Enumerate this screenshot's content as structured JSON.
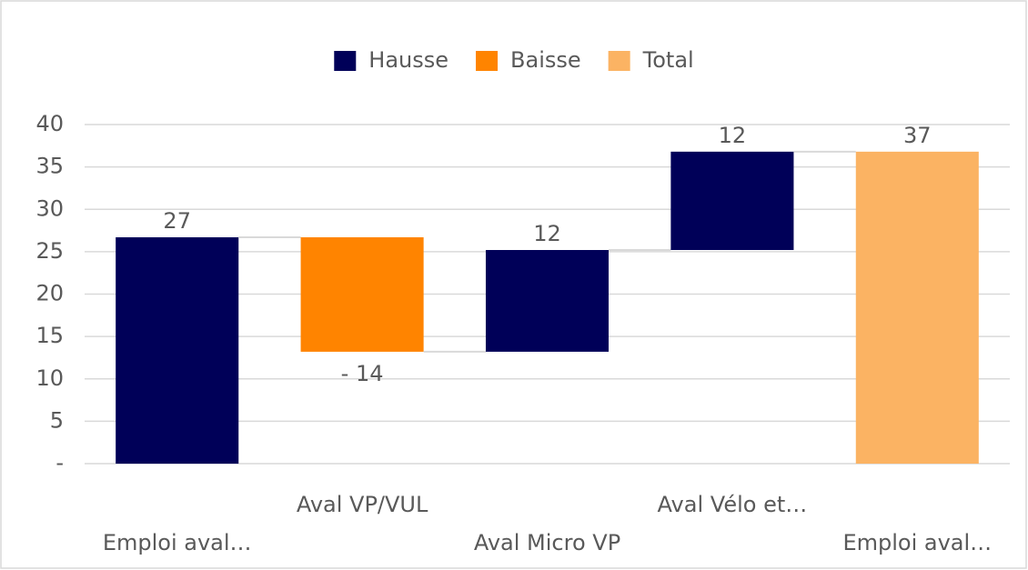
{
  "chart_data": {
    "type": "waterfall",
    "categories": [
      "Emploi aval…",
      "Aval VP/VUL",
      "Aval Micro VP",
      "Aval Vélo et…",
      "Emploi aval…"
    ],
    "series": [
      {
        "name": "Hausse",
        "color": "#000058",
        "values": [
          26.7,
          null,
          12,
          11.6,
          null
        ],
        "value_labels": [
          "27",
          null,
          "12",
          "12",
          null
        ]
      },
      {
        "name": "Baisse",
        "color": "#ff8400",
        "values": [
          null,
          -13.5,
          null,
          null,
          null
        ],
        "value_labels": [
          null,
          "- 14",
          null,
          null,
          null
        ]
      },
      {
        "name": "Total",
        "color": "#fbb363",
        "values": [
          null,
          null,
          null,
          null,
          36.8
        ],
        "value_labels": [
          null,
          null,
          null,
          null,
          "37"
        ]
      }
    ],
    "ylim": [
      0,
      40
    ],
    "yticks": [
      {
        "value": 0,
        "label": "-"
      },
      5,
      10,
      15,
      20,
      25,
      30,
      35,
      40
    ],
    "grid": true,
    "legend": "top"
  }
}
